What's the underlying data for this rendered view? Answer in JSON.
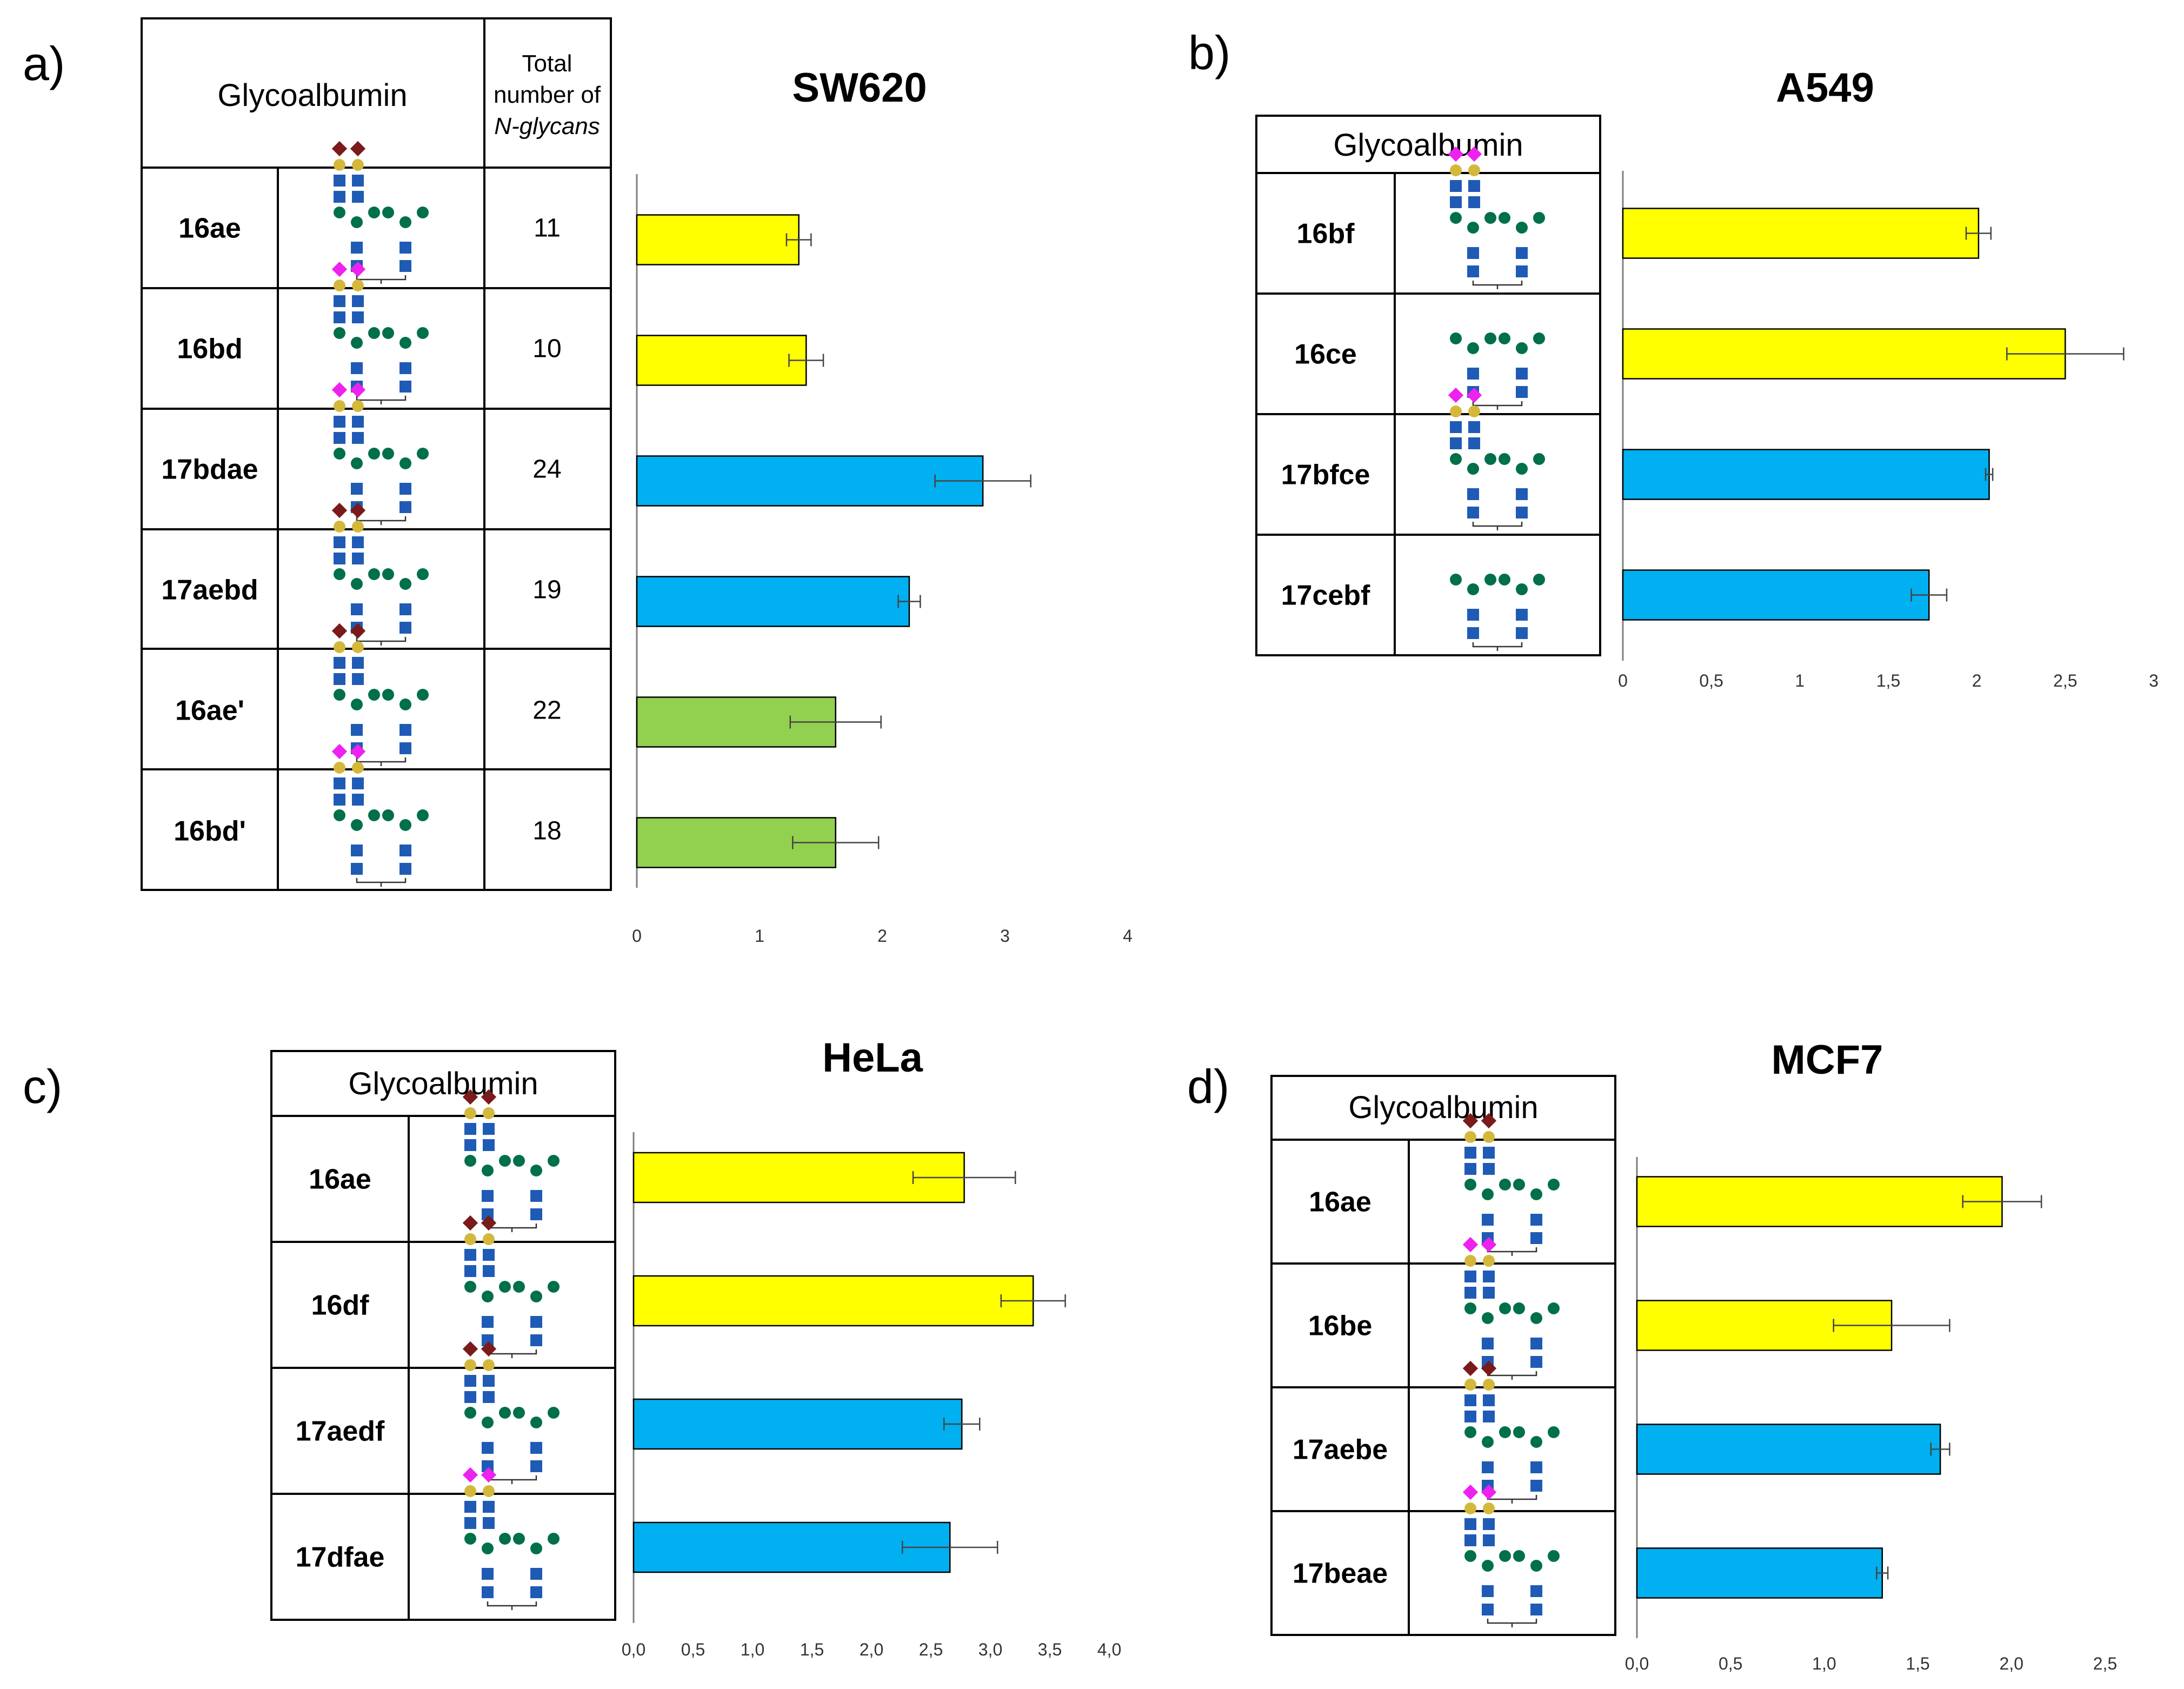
{
  "figure": {
    "panels": [
      {
        "label": "a)",
        "title": "SW620"
      },
      {
        "label": "b)",
        "title": "A549"
      },
      {
        "label": "c)",
        "title": "HeLa"
      },
      {
        "label": "d)",
        "title": "MCF7"
      }
    ],
    "table_header": "Glycoalbumin",
    "count_header": [
      "Total",
      "number of",
      "N-glycans"
    ],
    "counts_a": [
      "11",
      "10",
      "24",
      "19",
      "22",
      "18"
    ]
  },
  "chart_data": [
    {
      "type": "bar",
      "orientation": "horizontal",
      "title": "SW620",
      "categories": [
        "16ae",
        "16bd",
        "17bdae",
        "17aebd",
        "16ae'",
        "16bd'"
      ],
      "values": [
        1.32,
        1.38,
        2.82,
        2.22,
        1.62,
        1.62
      ],
      "errors": [
        0.1,
        0.14,
        0.39,
        0.09,
        0.37,
        0.35
      ],
      "colors": [
        "#ffff00",
        "#ffff00",
        "#00b0f0",
        "#00b0f0",
        "#92d050",
        "#92d050"
      ],
      "xlim": [
        0,
        4
      ],
      "ticks": [
        "0",
        "1",
        "2",
        "3",
        "4"
      ]
    },
    {
      "type": "bar",
      "orientation": "horizontal",
      "title": "A549",
      "categories": [
        "16bf",
        "16ce",
        "17bfce",
        "17cebf"
      ],
      "values": [
        2.01,
        2.5,
        2.07,
        1.73
      ],
      "errors": [
        0.07,
        0.33,
        0.02,
        0.1
      ],
      "colors": [
        "#ffff00",
        "#ffff00",
        "#00b0f0",
        "#00b0f0"
      ],
      "xlim": [
        0,
        3
      ],
      "ticks": [
        "0",
        "0,5",
        "1",
        "1,5",
        "2",
        "2,5",
        "3"
      ]
    },
    {
      "type": "bar",
      "orientation": "horizontal",
      "title": "HeLa",
      "categories": [
        "16ae",
        "16df",
        "17aedf",
        "17dfae"
      ],
      "values": [
        2.78,
        3.36,
        2.76,
        2.66
      ],
      "errors": [
        0.43,
        0.27,
        0.15,
        0.4
      ],
      "colors": [
        "#ffff00",
        "#ffff00",
        "#00b0f0",
        "#00b0f0"
      ],
      "xlim": [
        0,
        4
      ],
      "ticks": [
        "0,0",
        "0,5",
        "1,0",
        "1,5",
        "2,0",
        "2,5",
        "3,0",
        "3,5",
        "4,0"
      ]
    },
    {
      "type": "bar",
      "orientation": "horizontal",
      "title": "MCF7",
      "categories": [
        "16ae",
        "16be",
        "17aebe",
        "17beae"
      ],
      "values": [
        1.95,
        1.36,
        1.62,
        1.31
      ],
      "errors": [
        0.21,
        0.31,
        0.05,
        0.03
      ],
      "colors": [
        "#ffff00",
        "#ffff00",
        "#00b0f0",
        "#00b0f0"
      ],
      "xlim": [
        0,
        2.5
      ],
      "ticks": [
        "0,0",
        "0,5",
        "1,0",
        "1,5",
        "2,0",
        "2,5"
      ]
    }
  ]
}
